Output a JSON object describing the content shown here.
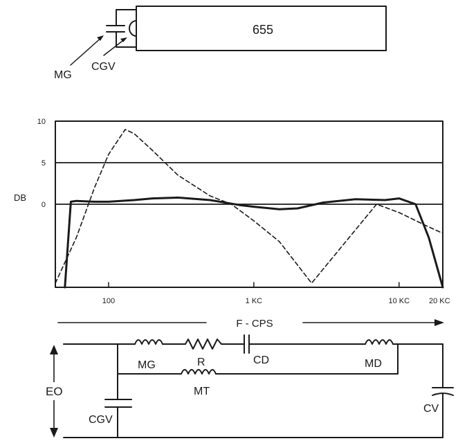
{
  "diagram_top": {
    "box_label": "655",
    "labels": {
      "mg": "MG",
      "cgv": "CGV"
    }
  },
  "chart_data": {
    "type": "line",
    "ylabel": "DB",
    "xlabel": "F - CPS",
    "x_scale": "log",
    "xlim": [
      43,
      20000
    ],
    "ylim": [
      -10,
      10
    ],
    "x_tick_labels": [
      "100",
      "1 KC",
      "10 KC",
      "20 KC"
    ],
    "x_tick_values": [
      100,
      1000,
      10000,
      20000
    ],
    "y_tick_labels": [
      "10",
      "5",
      "0"
    ],
    "y_tick_values": [
      10,
      5,
      0
    ],
    "reference_lines": [
      0,
      5
    ],
    "series": [
      {
        "style": "solid",
        "points": [
          [
            50,
            -10
          ],
          [
            55,
            0.3
          ],
          [
            60,
            0.4
          ],
          [
            80,
            0.3
          ],
          [
            100,
            0.3
          ],
          [
            150,
            0.5
          ],
          [
            200,
            0.7
          ],
          [
            300,
            0.8
          ],
          [
            500,
            0.5
          ],
          [
            800,
            -0.1
          ],
          [
            1000,
            -0.3
          ],
          [
            1500,
            -0.6
          ],
          [
            2000,
            -0.5
          ],
          [
            3000,
            0.2
          ],
          [
            5000,
            0.6
          ],
          [
            8000,
            0.5
          ],
          [
            10000,
            0.7
          ],
          [
            13000,
            0
          ],
          [
            16000,
            -4
          ],
          [
            20000,
            -10
          ]
        ]
      },
      {
        "style": "dashed",
        "points": [
          [
            43,
            -9.5
          ],
          [
            60,
            -4
          ],
          [
            80,
            2
          ],
          [
            100,
            6
          ],
          [
            130,
            9
          ],
          [
            150,
            8.5
          ],
          [
            200,
            6.5
          ],
          [
            300,
            3.5
          ],
          [
            500,
            1
          ],
          [
            700,
            0
          ],
          [
            1000,
            -2
          ],
          [
            1500,
            -4.5
          ],
          [
            2500,
            -9.5
          ],
          [
            7000,
            0
          ],
          [
            10000,
            -1
          ],
          [
            15000,
            -2.5
          ],
          [
            20000,
            -3.5
          ]
        ]
      }
    ]
  },
  "diagram_bottom": {
    "labels": {
      "mg": "MG",
      "r": "R",
      "cd": "CD",
      "md": "MD",
      "mt": "MT",
      "eo": "EO",
      "cgv": "CGV",
      "cv": "CV"
    }
  }
}
